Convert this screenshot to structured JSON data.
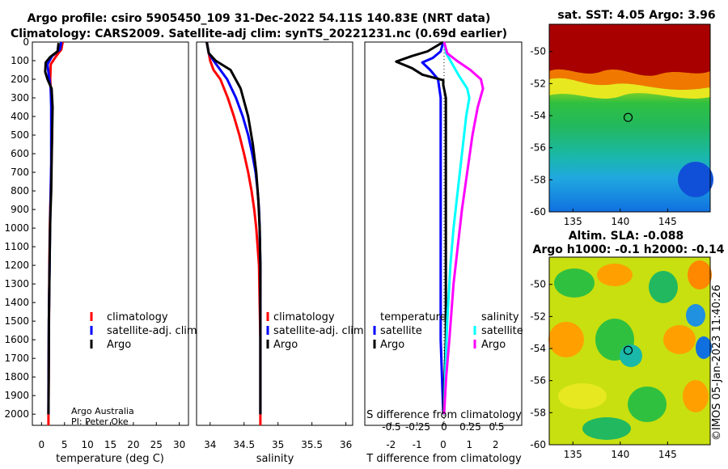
{
  "header": {
    "line1": "Argo profile: csiro 5905450_109 31-Dec-2022 54.11S 140.83E (NRT data)",
    "line2": "Climatology: CARS2009. Satellite-adj clim: synTS_20221231.nc (0.69d earlier)"
  },
  "colors": {
    "climatology": "#ff0000",
    "satellite": "#0000ff",
    "argo": "#000000",
    "satellite_s": "#00ffff",
    "argo_s": "#ff00ff"
  },
  "chart_data": [
    {
      "type": "line",
      "name": "temperature-profile",
      "xlabel": "temperature (deg C)",
      "ylabel": "",
      "xlim": [
        -2,
        32
      ],
      "ylim": [
        2060,
        0
      ],
      "xticks": [
        "0",
        "5",
        "10",
        "15",
        "20",
        "25",
        "30"
      ],
      "xtick_values": [
        0,
        5,
        10,
        15,
        20,
        25,
        30
      ],
      "yticks": [
        "0",
        "100",
        "200",
        "300",
        "400",
        "500",
        "600",
        "700",
        "800",
        "900",
        "1000",
        "1100",
        "1200",
        "1300",
        "1400",
        "1500",
        "1600",
        "1700",
        "1800",
        "1900",
        "2000"
      ],
      "ytick_values": [
        0,
        100,
        200,
        300,
        400,
        500,
        600,
        700,
        800,
        900,
        1000,
        1100,
        1200,
        1300,
        1400,
        1500,
        1600,
        1700,
        1800,
        1900,
        2000
      ],
      "legend": [
        "climatology",
        "satellite-adj. clim.",
        "Argo"
      ],
      "footer": [
        "Argo Australia",
        "PI: Peter Oke"
      ],
      "series": [
        {
          "name": "climatology",
          "x": [
            4.6,
            4.3,
            3.2,
            2.0,
            1.9,
            2.1,
            2.2,
            2.3,
            2.2,
            2.1,
            2.0,
            1.9,
            1.8,
            1.7,
            1.65,
            1.6,
            1.55,
            1.5,
            1.5
          ],
          "y": [
            0,
            40,
            75,
            120,
            200,
            300,
            400,
            500,
            600,
            700,
            800,
            900,
            1000,
            1200,
            1400,
            1600,
            1800,
            2000,
            2060
          ]
        },
        {
          "name": "satellite-adj. clim.",
          "x": [
            4.3,
            4.0,
            2.3,
            1.3,
            1.6,
            2.0,
            2.1,
            2.1,
            2.1,
            2.0,
            1.9,
            1.8,
            1.7,
            1.6,
            1.55,
            1.5,
            1.5
          ],
          "y": [
            0,
            40,
            75,
            120,
            180,
            250,
            350,
            500,
            650,
            800,
            950,
            1100,
            1300,
            1500,
            1700,
            1900,
            2000
          ]
        },
        {
          "name": "Argo",
          "x": [
            3.7,
            3.5,
            1.9,
            0.9,
            0.8,
            1.3,
            2.2,
            2.4,
            2.3,
            2.2,
            2.1,
            1.9,
            1.8,
            1.7,
            1.6,
            1.55,
            1.5
          ],
          "y": [
            5,
            50,
            80,
            110,
            160,
            200,
            250,
            350,
            500,
            650,
            800,
            950,
            1100,
            1300,
            1500,
            1800,
            2000
          ]
        }
      ]
    },
    {
      "type": "line",
      "name": "salinity-profile",
      "xlabel": "salinity",
      "xlim": [
        33.8,
        36.1
      ],
      "ylim": [
        2060,
        0
      ],
      "xticks": [
        "34",
        "34.5",
        "35",
        "35.5",
        "36"
      ],
      "xtick_values": [
        34,
        34.5,
        35,
        35.5,
        36
      ],
      "legend": [
        "climatology",
        "satellite-adj. clim.",
        "Argo"
      ],
      "series": [
        {
          "name": "climatology",
          "x": [
            33.95,
            34.0,
            34.05,
            34.15,
            34.26,
            34.35,
            34.43,
            34.5,
            34.56,
            34.61,
            34.65,
            34.68,
            34.7,
            34.72,
            34.73,
            34.74,
            34.74,
            34.74
          ],
          "y": [
            0,
            100,
            150,
            200,
            300,
            400,
            500,
            600,
            700,
            800,
            900,
            1000,
            1100,
            1200,
            1400,
            1600,
            2000,
            2060
          ]
        },
        {
          "name": "satellite-adj. clim.",
          "x": [
            33.95,
            33.98,
            34.05,
            34.25,
            34.38,
            34.48,
            34.56,
            34.62,
            34.67,
            34.7,
            34.72,
            34.73,
            34.74,
            34.74
          ],
          "y": [
            0,
            60,
            100,
            200,
            300,
            400,
            500,
            600,
            700,
            800,
            900,
            1000,
            1200,
            2000
          ]
        },
        {
          "name": "Argo",
          "x": [
            33.95,
            33.98,
            34.08,
            34.3,
            34.45,
            34.56,
            34.63,
            34.68,
            34.71,
            34.73,
            34.74,
            34.74
          ],
          "y": [
            0,
            60,
            100,
            150,
            250,
            400,
            550,
            700,
            850,
            1000,
            1200,
            2000
          ]
        }
      ]
    },
    {
      "type": "line",
      "name": "difference-profile",
      "xlabel": "T difference from climatology",
      "xlabel_top": "S difference from climatology",
      "xlim": [
        -3,
        3
      ],
      "ylim": [
        2060,
        0
      ],
      "xticks": [
        "-2",
        "-1",
        "0",
        "1",
        "2"
      ],
      "xtick_values": [
        -2,
        -1,
        0,
        1,
        2
      ],
      "s_ticks": [
        "-0.5",
        "-0.25",
        "0",
        "0.25",
        "0.5"
      ],
      "s_tick_values": [
        -0.5,
        -0.25,
        0,
        0.25,
        0.5
      ],
      "legend_t": {
        "heading": "temperature",
        "items": [
          "satellite",
          "Argo"
        ]
      },
      "legend_s": {
        "heading": "salinity",
        "items": [
          "satellite",
          "Argo"
        ]
      },
      "series": [
        {
          "name": "T satellite",
          "x": [
            0.0,
            -0.1,
            -0.4,
            -0.8,
            -0.5,
            -0.2,
            -0.1,
            -0.1,
            -0.1,
            -0.1,
            -0.1,
            -0.1,
            -0.1,
            -0.1,
            -0.05,
            0.0
          ],
          "y": [
            0,
            50,
            85,
            110,
            150,
            200,
            300,
            400,
            600,
            800,
            1000,
            1200,
            1400,
            1600,
            1800,
            2000
          ]
        },
        {
          "name": "T Argo",
          "x": [
            0.0,
            -0.6,
            -1.2,
            -1.8,
            -1.2,
            -0.8,
            0.0,
            0.0,
            0.1,
            0.1,
            0.1,
            0.1,
            0.1,
            0.1,
            0.1,
            0.05,
            0.0
          ],
          "y": [
            0,
            50,
            75,
            105,
            140,
            175,
            205,
            230,
            300,
            500,
            700,
            900,
            1100,
            1300,
            1600,
            1800,
            2000
          ]
        },
        {
          "name": "S satellite",
          "x": [
            0.0,
            0.02,
            0.08,
            0.14,
            0.22,
            0.24,
            0.21,
            0.17,
            0.13,
            0.09,
            0.06,
            0.03,
            0.01,
            0.0
          ],
          "y": [
            0,
            60,
            120,
            180,
            250,
            300,
            400,
            600,
            800,
            1000,
            1200,
            1500,
            1800,
            2000
          ]
        },
        {
          "name": "S Argo",
          "x": [
            0.0,
            0.03,
            0.12,
            0.25,
            0.35,
            0.37,
            0.32,
            0.27,
            0.22,
            0.17,
            0.13,
            0.09,
            0.05,
            0.02,
            0.0
          ],
          "y": [
            0,
            60,
            100,
            150,
            200,
            250,
            350,
            500,
            700,
            900,
            1100,
            1300,
            1600,
            1800,
            2000
          ]
        }
      ]
    },
    {
      "type": "heatmap",
      "name": "sst-map",
      "title": "sat. SST: 4.05 Argo: 3.96",
      "xticks": [
        "135",
        "140",
        "145"
      ],
      "xtick_values": [
        135,
        140,
        145
      ],
      "yticks": [
        "-50",
        "-52",
        "-54",
        "-56",
        "-58",
        "-60"
      ],
      "ytick_values": [
        -50,
        -52,
        -54,
        -56,
        -58,
        -60
      ],
      "xlim": [
        132.5,
        149.5
      ],
      "ylim": [
        -60,
        -48.3
      ],
      "marker": {
        "lon": 140.83,
        "lat": -54.11
      }
    },
    {
      "type": "heatmap",
      "name": "sla-map",
      "title_line1": "Altim. SLA: -0.088",
      "title_line2": "Argo h1000: -0.1 h2000: -0.14",
      "xticks": [
        "135",
        "140",
        "145"
      ],
      "xtick_values": [
        135,
        140,
        145
      ],
      "yticks": [
        "-50",
        "-52",
        "-54",
        "-56",
        "-58",
        "-60"
      ],
      "ytick_values": [
        -50,
        -52,
        -54,
        -56,
        -58,
        -60
      ],
      "xlim": [
        132.5,
        149.5
      ],
      "ylim": [
        -60,
        -48.3
      ],
      "marker": {
        "lon": 140.83,
        "lat": -54.11
      }
    }
  ],
  "watermark": "©IMOS 05-Jan-2023 11:40:26"
}
